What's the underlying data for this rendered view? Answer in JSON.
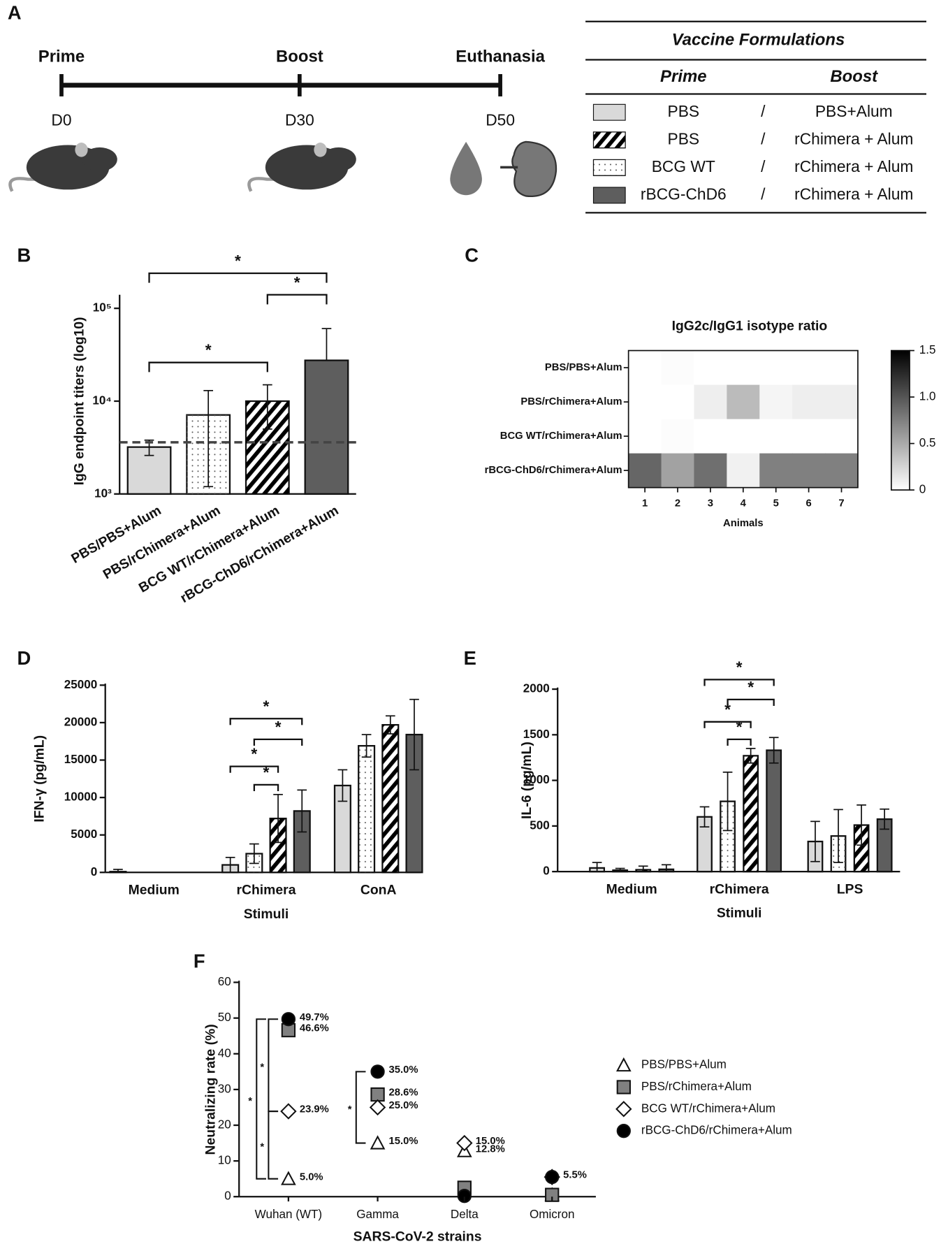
{
  "panel_a": {
    "label": "A",
    "timeline": [
      {
        "event": "Prime",
        "day": "D0"
      },
      {
        "event": "Boost",
        "day": "D30"
      },
      {
        "event": "Euthanasia",
        "day": "D50"
      }
    ],
    "table": {
      "title": "Vaccine Formulations",
      "headers": [
        "Prime",
        "Boost"
      ],
      "rows": [
        [
          "PBS",
          "/",
          "PBS+Alum"
        ],
        [
          "PBS",
          "/",
          "rChimera + Alum"
        ],
        [
          "BCG WT",
          "/",
          "rChimera + Alum"
        ],
        [
          "rBCG-ChD6",
          "/",
          "rChimera + Alum"
        ]
      ],
      "swatches": [
        {
          "color": "#d9d9d9",
          "pattern": "solid"
        },
        {
          "color": "#ffffff",
          "pattern": "stripes"
        },
        {
          "color": "#ffffff",
          "pattern": "dots"
        },
        {
          "color": "#5e5e5e",
          "pattern": "solid"
        }
      ]
    }
  },
  "chart_data": [
    {
      "panel": "B",
      "type": "bar",
      "ylabel": "IgG endpoint titers  (log10)",
      "categories": [
        "PBS/PBS+Alum",
        "PBS/rChimera+Alum",
        "BCG WT/rChimera+Alum",
        "rBCG-ChD6/rChimera+Alum"
      ],
      "values": [
        3200,
        7100,
        10000,
        27500
      ],
      "errors": [
        600,
        5900,
        5000,
        33000
      ],
      "colors": [
        "#d9d9d9",
        "#ffffff",
        "#ffffff",
        "#5e5e5e"
      ],
      "patterns": [
        "solid",
        "dots",
        "stripes",
        "solid"
      ],
      "log_scale": true,
      "ylim": [
        1000,
        100000
      ],
      "yticks": [
        {
          "value": 1000,
          "label": "10³"
        },
        {
          "value": 10000,
          "label": "10⁴"
        },
        {
          "value": 100000,
          "label": "10⁵"
        }
      ],
      "threshold": 3600,
      "significance": [
        {
          "from": 0,
          "to": 3,
          "label": "*"
        },
        {
          "from": 2,
          "to": 3,
          "label": "*"
        },
        {
          "from": 0,
          "to": 2,
          "label": "*"
        }
      ]
    },
    {
      "panel": "C",
      "type": "heatmap",
      "title": "IgG2c/IgG1 isotype ratio",
      "rows": [
        "PBS/PBS+Alum",
        "PBS/rChimera+Alum",
        "BCG WT/rChimera+Alum",
        "rBCG-ChD6/rChimera+Alum"
      ],
      "columns": [
        1,
        2,
        3,
        4,
        5,
        6,
        7
      ],
      "xlabel": "Animals",
      "values": [
        [
          0,
          0.02,
          0,
          0,
          0,
          0,
          0
        ],
        [
          0,
          0,
          0.1,
          0.4,
          0.06,
          0.1,
          0.1
        ],
        [
          0,
          0.02,
          0,
          0,
          0,
          0,
          0
        ],
        [
          0.9,
          0.55,
          0.85,
          0.08,
          0.75,
          0.75,
          0.75
        ]
      ],
      "colormap": [
        "#ffffff",
        "#000000"
      ],
      "colorbar_lim": [
        0,
        1.5
      ],
      "colorbar_ticks": [
        0,
        0.5,
        {
          "value": 1,
          "label": "1.0"
        },
        1.5
      ]
    },
    {
      "panel": "D",
      "type": "grouped_bar",
      "ylabel": "IFN-γ (pg/mL)",
      "xlabel": "Stimuli",
      "categories": [
        "Medium",
        "rChimera",
        "ConA"
      ],
      "series": [
        {
          "color": "#d9d9d9",
          "pattern": "solid",
          "values": [
            100,
            1000,
            11600
          ],
          "errors": [
            300,
            1000,
            2100
          ]
        },
        {
          "color": "#ffffff",
          "pattern": "dots",
          "values": [
            0,
            2500,
            16900
          ],
          "errors": [
            0,
            1300,
            1500
          ]
        },
        {
          "color": "#ffffff",
          "pattern": "stripes",
          "values": [
            0,
            7200,
            19700
          ],
          "errors": [
            0,
            3200,
            1200
          ]
        },
        {
          "color": "#5e5e5e",
          "pattern": "solid",
          "values": [
            0,
            8200,
            18400
          ],
          "errors": [
            0,
            2800,
            4700
          ]
        }
      ],
      "ylim": [
        0,
        25000
      ],
      "yticks": [
        0,
        5000,
        10000,
        15000,
        20000,
        25000
      ],
      "significance": [
        {
          "category": 1,
          "from": 0,
          "to": 3,
          "label": "*"
        },
        {
          "category": 1,
          "from": 1,
          "to": 3,
          "label": "*"
        },
        {
          "category": 1,
          "from": 0,
          "to": 2,
          "label": "*"
        },
        {
          "category": 1,
          "from": 1,
          "to": 2,
          "label": "*"
        }
      ]
    },
    {
      "panel": "E",
      "type": "grouped_bar",
      "ylabel": "IL-6 (pg/mL)",
      "xlabel": "Stimuli",
      "categories": [
        "Medium",
        "rChimera",
        "LPS"
      ],
      "series": [
        {
          "color": "#d9d9d9",
          "pattern": "solid",
          "values": [
            40,
            600,
            330
          ],
          "errors": [
            60,
            110,
            220
          ]
        },
        {
          "color": "#ffffff",
          "pattern": "dots",
          "values": [
            15,
            770,
            390
          ],
          "errors": [
            20,
            320,
            290
          ]
        },
        {
          "color": "#ffffff",
          "pattern": "stripes",
          "values": [
            20,
            1270,
            510
          ],
          "errors": [
            40,
            80,
            220
          ]
        },
        {
          "color": "#5e5e5e",
          "pattern": "solid",
          "values": [
            25,
            1330,
            575
          ],
          "errors": [
            50,
            140,
            110
          ]
        }
      ],
      "ylim": [
        0,
        2000
      ],
      "yticks": [
        0,
        500,
        1000,
        1500,
        2000
      ],
      "significance": [
        {
          "category": 1,
          "from": 0,
          "to": 3,
          "label": "*"
        },
        {
          "category": 1,
          "from": 1,
          "to": 3,
          "label": "*"
        },
        {
          "category": 1,
          "from": 0,
          "to": 2,
          "label": "*"
        },
        {
          "category": 1,
          "from": 1,
          "to": 2,
          "label": "*"
        }
      ]
    },
    {
      "panel": "F",
      "type": "dot",
      "ylabel": "Neutralizing rate (%)",
      "xlabel": "SARS-CoV-2 strains",
      "categories": [
        "Wuhan (WT)",
        "Gamma",
        "Delta",
        "Omicron"
      ],
      "series": [
        {
          "name": "PBS/PBS+Alum",
          "marker": "triangle",
          "color": "#ffffff",
          "values": [
            5.0,
            15.0,
            12.8,
            0.5
          ],
          "value_labels": [
            "5.0%",
            "15.0%",
            "12.8%",
            null
          ]
        },
        {
          "name": "PBS/rChimera+Alum",
          "marker": "square",
          "color": "#808080",
          "values": [
            46.6,
            28.6,
            2.5,
            0.5
          ],
          "value_labels": [
            "46.6%",
            "28.6%",
            null,
            null
          ]
        },
        {
          "name": "BCG WT/rChimera+Alum",
          "marker": "diamond",
          "color": "#ffffff",
          "values": [
            23.9,
            25.0,
            15.0,
            5.5
          ],
          "value_labels": [
            "23.9%",
            "25.0%",
            "15.0%",
            "5.5%"
          ]
        },
        {
          "name": "rBCG-ChD6/rChimera+Alum",
          "marker": "circle",
          "color": "#000000",
          "values": [
            49.7,
            35.0,
            0.2,
            5.5
          ],
          "value_labels": [
            "49.7%",
            "35.0%",
            null,
            null
          ]
        }
      ],
      "ylim": [
        0,
        60
      ],
      "yticks": [
        0,
        10,
        20,
        30,
        40,
        50,
        60
      ],
      "legend": "right",
      "significance": [
        {
          "category": 0,
          "from": 3,
          "to": 0,
          "label": "*"
        },
        {
          "category": 0,
          "from": 3,
          "to": 2,
          "label": "*"
        },
        {
          "category": 0,
          "from": 2,
          "to": 0,
          "label": "*"
        },
        {
          "category": 1,
          "from": 3,
          "to": 0,
          "label": "*"
        }
      ]
    }
  ]
}
